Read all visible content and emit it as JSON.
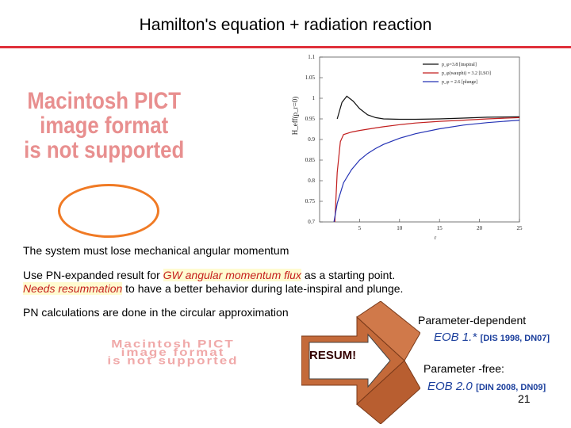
{
  "title": "Hamilton's equation + radiation reaction",
  "pict_placeholder_top": [
    "Macintosh PICT",
    "image format",
    "is not supported"
  ],
  "pict_placeholder_bottom": [
    "Macintosh PICT",
    "image format",
    "is not supported"
  ],
  "line1": "The system must lose mechanical angular momentum",
  "line2": {
    "a": "Use PN-expanded  result for ",
    "b": "GW angular momentum flux",
    "c": " as a starting point."
  },
  "line3": {
    "a": "Needs resummation",
    "b": " to have a better behavior during late-inspiral and plunge."
  },
  "line4": "PN calculations are done in the circular approximation",
  "resum": "RESUM!",
  "right": {
    "param_dep": "Parameter-dependent",
    "eob1": "EOB 1.*",
    "cite1": "[DIS 1998, DN07]",
    "param_free": "Parameter -free:",
    "eob2": "EOB 2.0",
    "cite2": "[DIN 2008, DN09]"
  },
  "page_number": "21",
  "colors": {
    "accent_rule": "#e0303a",
    "emphasis_red": "#c5201e",
    "eob_blue": "#1a3e9c",
    "arrow": "#c46a3a"
  },
  "chart_data": {
    "type": "line",
    "ylabel": "H_eff(p_r=0)",
    "xlabel": "r",
    "xlim": [
      0,
      25
    ],
    "ylim": [
      0.7,
      1.1
    ],
    "x_ticks": [
      "5",
      "10",
      "15",
      "20",
      "25"
    ],
    "y_ticks": [
      "0.7",
      "0.75",
      "0.8",
      "0.85",
      "0.9",
      "0.95",
      "1",
      "1.05",
      "1.1"
    ],
    "series": [
      {
        "name": "p_φ=3.8 [inspiral]",
        "color": "#111111",
        "x": [
          2.2,
          2.8,
          3.4,
          4.2,
          5,
          6,
          7,
          8,
          10,
          12,
          15,
          18,
          21,
          25
        ],
        "y": [
          0.95,
          0.99,
          1.005,
          0.993,
          0.975,
          0.96,
          0.953,
          0.95,
          0.949,
          0.949,
          0.95,
          0.952,
          0.954,
          0.955
        ]
      },
      {
        "name": "p_φ(wauphi) = 3.2 [LSO]",
        "color": "#c21f1f",
        "x": [
          1.9,
          2.2,
          2.6,
          3,
          4,
          5,
          6,
          7,
          8,
          10,
          12,
          15,
          18,
          21,
          25
        ],
        "y": [
          0.7,
          0.82,
          0.895,
          0.912,
          0.918,
          0.922,
          0.925,
          0.928,
          0.931,
          0.936,
          0.94,
          0.944,
          0.947,
          0.95,
          0.953
        ]
      },
      {
        "name": "p_φ = 2.6 [plunge]",
        "color": "#2533b5",
        "x": [
          1.8,
          2.2,
          3,
          4,
          5,
          6,
          7,
          8,
          10,
          12,
          15,
          18,
          21,
          25
        ],
        "y": [
          0.7,
          0.745,
          0.795,
          0.827,
          0.85,
          0.866,
          0.878,
          0.888,
          0.903,
          0.914,
          0.926,
          0.935,
          0.941,
          0.947
        ]
      }
    ]
  }
}
